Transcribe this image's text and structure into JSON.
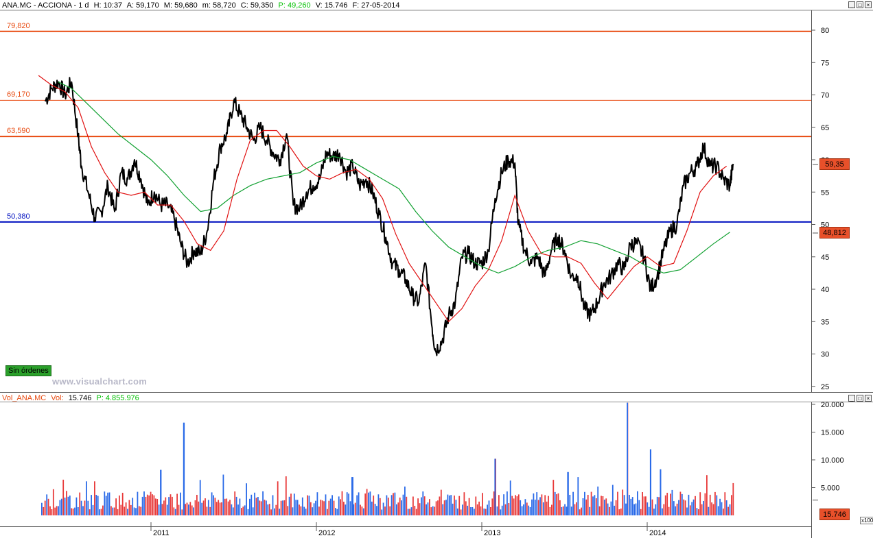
{
  "main_title": {
    "symbol": "ANA.MC - ACCIONA - 1 d",
    "h": "H: 10:37",
    "a": "A: 59,170",
    "m_high": "M: 59,680",
    "m_low": "m: 58,720",
    "c": "C: 59,350",
    "p": "P: 49,260",
    "v": "V: 15.746",
    "f": "F: 27-05-2014"
  },
  "vol_title": {
    "name": "Vol_ANA.MC",
    "vol_label": "Vol:",
    "vol_value": "15.746",
    "p": "P: 4.855.976"
  },
  "buttons": {
    "sin_ordenes": "Sin órdenes"
  },
  "watermark": "www.visualchart.com",
  "colors": {
    "price": "#000000",
    "sma_fast": "#e01010",
    "sma_slow": "#10a030",
    "level_orange": "#e84a10",
    "level_blue": "#0010c0",
    "vol_blue": "#2a6ae8",
    "vol_red": "#e83a3a",
    "p_green": "#00c000"
  },
  "price_tags": {
    "last": "59,35",
    "sma": "48,812"
  },
  "vol_tag": "15.746",
  "vol_multiplier": "x100",
  "chart_data": [
    {
      "type": "line",
      "ylim": [
        24,
        83
      ],
      "y_ticks": [
        "80",
        "75",
        "70",
        "65",
        "60",
        "55",
        "50",
        "45",
        "40",
        "35",
        "30",
        "25"
      ],
      "x_ticks": [
        "2011",
        "2012",
        "2013",
        "2014"
      ],
      "levels": [
        {
          "label": "79,820",
          "value": 79.82,
          "color": "#e84a10",
          "width": 2
        },
        {
          "label": "69,170",
          "value": 69.17,
          "color": "#e84a10",
          "width": 1
        },
        {
          "label": "63,590",
          "value": 63.59,
          "color": "#e84a10",
          "width": 2
        },
        {
          "label": "50,380",
          "value": 50.38,
          "color": "#0010c0",
          "width": 2
        }
      ],
      "price_series": [
        [
          2010.36,
          69.0
        ],
        [
          2010.4,
          71.0
        ],
        [
          2010.44,
          72.0
        ],
        [
          2010.48,
          70.0
        ],
        [
          2010.52,
          72.0
        ],
        [
          2010.56,
          63.5
        ],
        [
          2010.58,
          59.0
        ],
        [
          2010.62,
          55.0
        ],
        [
          2010.66,
          51.0
        ],
        [
          2010.7,
          52.0
        ],
        [
          2010.74,
          56.0
        ],
        [
          2010.78,
          52.0
        ],
        [
          2010.82,
          58.0
        ],
        [
          2010.86,
          57.0
        ],
        [
          2010.9,
          60.0
        ],
        [
          2010.94,
          57.0
        ],
        [
          2010.98,
          53.0
        ],
        [
          2011.02,
          55.0
        ],
        [
          2011.06,
          53.0
        ],
        [
          2011.1,
          53.0
        ],
        [
          2011.14,
          51.0
        ],
        [
          2011.18,
          47.0
        ],
        [
          2011.22,
          44.0
        ],
        [
          2011.26,
          46.0
        ],
        [
          2011.3,
          45.5
        ],
        [
          2011.34,
          49.0
        ],
        [
          2011.38,
          57.0
        ],
        [
          2011.42,
          62.0
        ],
        [
          2011.46,
          64.0
        ],
        [
          2011.5,
          69.0
        ],
        [
          2011.54,
          67.0
        ],
        [
          2011.58,
          65.0
        ],
        [
          2011.62,
          63.0
        ],
        [
          2011.66,
          65.0
        ],
        [
          2011.7,
          63.0
        ],
        [
          2011.74,
          61.0
        ],
        [
          2011.78,
          60.0
        ],
        [
          2011.82,
          64.0
        ],
        [
          2011.86,
          53.0
        ],
        [
          2011.9,
          52.5
        ],
        [
          2011.94,
          55.0
        ],
        [
          2011.98,
          56.0
        ],
        [
          2012.02,
          57.0
        ],
        [
          2012.06,
          61.0
        ],
        [
          2012.1,
          60.5
        ],
        [
          2012.14,
          61.0
        ],
        [
          2012.18,
          58.0
        ],
        [
          2012.22,
          59.0
        ],
        [
          2012.26,
          56.0
        ],
        [
          2012.3,
          57.0
        ],
        [
          2012.34,
          55.0
        ],
        [
          2012.38,
          51.5
        ],
        [
          2012.42,
          48.0
        ],
        [
          2012.46,
          44.0
        ],
        [
          2012.5,
          43.0
        ],
        [
          2012.54,
          41.5
        ],
        [
          2012.58,
          39.0
        ],
        [
          2012.62,
          38.0
        ],
        [
          2012.66,
          44.0
        ],
        [
          2012.7,
          34.0
        ],
        [
          2012.72,
          30.5
        ],
        [
          2012.76,
          32.0
        ],
        [
          2012.8,
          36.0
        ],
        [
          2012.84,
          38.0
        ],
        [
          2012.88,
          45.0
        ],
        [
          2012.92,
          45.5
        ],
        [
          2012.96,
          44.0
        ],
        [
          2013.0,
          44.0
        ],
        [
          2013.04,
          46.0
        ],
        [
          2013.08,
          54.0
        ],
        [
          2013.12,
          58.0
        ],
        [
          2013.16,
          60.0
        ],
        [
          2013.2,
          59.5
        ],
        [
          2013.22,
          50.0
        ],
        [
          2013.26,
          46.0
        ],
        [
          2013.3,
          44.0
        ],
        [
          2013.34,
          45.0
        ],
        [
          2013.38,
          42.0
        ],
        [
          2013.42,
          46.0
        ],
        [
          2013.46,
          48.0
        ],
        [
          2013.5,
          46.0
        ],
        [
          2013.54,
          42.0
        ],
        [
          2013.58,
          42.0
        ],
        [
          2013.62,
          37.0
        ],
        [
          2013.66,
          36.0
        ],
        [
          2013.7,
          38.0
        ],
        [
          2013.74,
          41.0
        ],
        [
          2013.78,
          42.0
        ],
        [
          2013.82,
          44.0
        ],
        [
          2013.86,
          43.0
        ],
        [
          2013.9,
          47.0
        ],
        [
          2013.94,
          47.0
        ],
        [
          2013.98,
          45.0
        ],
        [
          2014.02,
          40.0
        ],
        [
          2014.06,
          42.0
        ],
        [
          2014.1,
          46.0
        ],
        [
          2014.14,
          49.0
        ],
        [
          2014.18,
          50.0
        ],
        [
          2014.22,
          56.0
        ],
        [
          2014.26,
          58.0
        ],
        [
          2014.3,
          59.0
        ],
        [
          2014.34,
          62.0
        ],
        [
          2014.38,
          59.0
        ],
        [
          2014.42,
          59.0
        ],
        [
          2014.46,
          57.0
        ],
        [
          2014.5,
          56.0
        ],
        [
          2014.52,
          59.35
        ]
      ],
      "sma_fast": [
        [
          2010.32,
          73.0
        ],
        [
          2010.4,
          71.5
        ],
        [
          2010.48,
          70.5
        ],
        [
          2010.56,
          68.0
        ],
        [
          2010.64,
          62.0
        ],
        [
          2010.72,
          58.0
        ],
        [
          2010.8,
          55.0
        ],
        [
          2010.88,
          54.5
        ],
        [
          2010.96,
          55.0
        ],
        [
          2011.04,
          53.0
        ],
        [
          2011.12,
          53.0
        ],
        [
          2011.2,
          50.5
        ],
        [
          2011.28,
          47.0
        ],
        [
          2011.36,
          46.0
        ],
        [
          2011.44,
          49.0
        ],
        [
          2011.52,
          57.0
        ],
        [
          2011.6,
          63.0
        ],
        [
          2011.68,
          64.5
        ],
        [
          2011.76,
          64.5
        ],
        [
          2011.84,
          62.0
        ],
        [
          2011.92,
          59.0
        ],
        [
          2012.0,
          57.5
        ],
        [
          2012.08,
          57.0
        ],
        [
          2012.16,
          58.0
        ],
        [
          2012.24,
          58.5
        ],
        [
          2012.32,
          57.0
        ],
        [
          2012.4,
          54.0
        ],
        [
          2012.48,
          48.5
        ],
        [
          2012.56,
          44.0
        ],
        [
          2012.64,
          41.0
        ],
        [
          2012.72,
          38.0
        ],
        [
          2012.8,
          35.0
        ],
        [
          2012.88,
          37.0
        ],
        [
          2012.96,
          40.5
        ],
        [
          2013.04,
          43.0
        ],
        [
          2013.12,
          47.5
        ],
        [
          2013.2,
          54.5
        ],
        [
          2013.28,
          49.0
        ],
        [
          2013.36,
          45.5
        ],
        [
          2013.44,
          45.0
        ],
        [
          2013.52,
          45.0
        ],
        [
          2013.6,
          44.0
        ],
        [
          2013.68,
          41.0
        ],
        [
          2013.76,
          38.5
        ],
        [
          2013.84,
          41.0
        ],
        [
          2013.92,
          43.5
        ],
        [
          2014.0,
          45.0
        ],
        [
          2014.08,
          43.5
        ],
        [
          2014.16,
          44.0
        ],
        [
          2014.24,
          49.0
        ],
        [
          2014.32,
          55.0
        ],
        [
          2014.4,
          57.5
        ],
        [
          2014.48,
          59.0
        ]
      ],
      "sma_slow": [
        [
          2010.44,
          72.0
        ],
        [
          2010.52,
          71.0
        ],
        [
          2010.6,
          69.0
        ],
        [
          2010.7,
          66.5
        ],
        [
          2010.8,
          64.0
        ],
        [
          2010.9,
          62.0
        ],
        [
          2011.0,
          60.0
        ],
        [
          2011.1,
          57.5
        ],
        [
          2011.2,
          54.5
        ],
        [
          2011.3,
          52.0
        ],
        [
          2011.4,
          52.5
        ],
        [
          2011.5,
          54.5
        ],
        [
          2011.6,
          56.0
        ],
        [
          2011.7,
          57.0
        ],
        [
          2011.8,
          57.5
        ],
        [
          2011.9,
          58.0
        ],
        [
          2012.0,
          59.5
        ],
        [
          2012.1,
          60.5
        ],
        [
          2012.2,
          60.0
        ],
        [
          2012.3,
          58.5
        ],
        [
          2012.4,
          57.0
        ],
        [
          2012.5,
          55.5
        ],
        [
          2012.6,
          52.0
        ],
        [
          2012.7,
          49.0
        ],
        [
          2012.8,
          46.5
        ],
        [
          2012.9,
          45.0
        ],
        [
          2013.0,
          43.5
        ],
        [
          2013.1,
          42.5
        ],
        [
          2013.2,
          43.5
        ],
        [
          2013.3,
          45.0
        ],
        [
          2013.4,
          46.0
        ],
        [
          2013.5,
          46.5
        ],
        [
          2013.6,
          47.5
        ],
        [
          2013.7,
          47.0
        ],
        [
          2013.8,
          46.0
        ],
        [
          2013.9,
          45.0
        ],
        [
          2014.0,
          43.5
        ],
        [
          2014.1,
          42.5
        ],
        [
          2014.2,
          43.0
        ],
        [
          2014.3,
          45.0
        ],
        [
          2014.4,
          47.0
        ],
        [
          2014.5,
          48.812
        ]
      ]
    },
    {
      "type": "bar",
      "ylim": [
        0,
        21000
      ],
      "y_ticks": [
        "20.000",
        "15.000",
        "10.000",
        "5.000"
      ],
      "baseline": 3000,
      "spikes": [
        {
          "x": 2011.2,
          "value": 16700
        },
        {
          "x": 2011.06,
          "value": 8200
        },
        {
          "x": 2013.08,
          "value": 10200
        },
        {
          "x": 2013.88,
          "value": 20300
        },
        {
          "x": 2014.02,
          "value": 11900
        },
        {
          "x": 2014.08,
          "value": 8300
        },
        {
          "x": 2013.52,
          "value": 7800
        },
        {
          "x": 2012.22,
          "value": 6900
        }
      ]
    }
  ]
}
